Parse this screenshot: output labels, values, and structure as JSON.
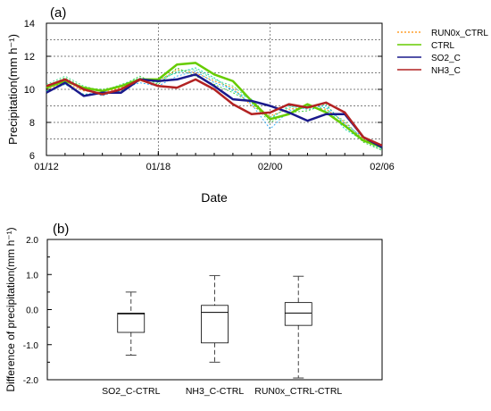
{
  "chart_data": [
    {
      "type": "line",
      "panel_label": "(a)",
      "xlabel": "Date",
      "ylabel": "Precipitation(mm h⁻¹)",
      "ylim": [
        6,
        14
      ],
      "y_ticks": [
        "6",
        "8",
        "10",
        "12",
        "14"
      ],
      "x_ticks": [
        {
          "label": "01/12",
          "x": 0
        },
        {
          "label": "01/18",
          "x": 6
        },
        {
          "label": "02/00",
          "x": 12
        },
        {
          "label": "02/06",
          "x": 18
        }
      ],
      "grid": "dashed",
      "legend_position": "right",
      "series": [
        {
          "name": "RUN0x_CTRL",
          "color": "#ff8c00",
          "style": "dotted",
          "width": 1
        },
        {
          "name": "CTRL",
          "color": "#66cc00",
          "style": "solid",
          "width": 2.5,
          "x": [
            0,
            1,
            2,
            3,
            4,
            5,
            6,
            7,
            8,
            9,
            10,
            11,
            12,
            13,
            14,
            15,
            16,
            17,
            18
          ],
          "y": [
            10.1,
            10.5,
            10.1,
            9.9,
            10.2,
            10.6,
            10.6,
            11.5,
            11.6,
            10.9,
            10.5,
            9.3,
            8.2,
            8.5,
            9.1,
            8.6,
            7.8,
            6.9,
            6.5
          ]
        },
        {
          "name": "SO2_C",
          "color": "#1a1a8c",
          "style": "solid",
          "width": 2.5,
          "x": [
            0,
            1,
            2,
            3,
            4,
            5,
            6,
            7,
            8,
            9,
            10,
            11,
            12,
            13,
            14,
            15,
            16,
            17,
            18
          ],
          "y": [
            9.8,
            10.4,
            9.6,
            9.8,
            9.8,
            10.6,
            10.5,
            10.6,
            10.9,
            10.2,
            9.4,
            9.3,
            9.0,
            8.6,
            8.1,
            8.5,
            8.5,
            7.1,
            6.5
          ]
        },
        {
          "name": "NH3_C",
          "color": "#b22222",
          "style": "solid",
          "width": 2.5,
          "x": [
            0,
            1,
            2,
            3,
            4,
            5,
            6,
            7,
            8,
            9,
            10,
            11,
            12,
            13,
            14,
            15,
            16,
            17,
            18
          ],
          "y": [
            10.2,
            10.6,
            10.0,
            9.7,
            10.0,
            10.6,
            10.2,
            10.1,
            10.6,
            10.0,
            9.1,
            8.5,
            8.6,
            9.1,
            8.9,
            9.2,
            8.6,
            7.1,
            6.6
          ]
        }
      ],
      "ensemble_members": [
        {
          "color": "#ff8c00",
          "y": [
            10.0,
            10.4,
            9.9,
            9.8,
            10.1,
            10.5,
            10.5,
            11.2,
            11.0,
            10.5,
            10.1,
            9.0,
            8.4,
            8.8,
            8.9,
            8.8,
            8.0,
            7.0,
            6.4
          ]
        },
        {
          "color": "#33cc33",
          "y": [
            10.2,
            10.7,
            10.1,
            10.0,
            10.2,
            10.8,
            10.3,
            11.3,
            10.8,
            10.3,
            9.8,
            9.2,
            8.0,
            8.6,
            8.7,
            9.1,
            7.8,
            6.8,
            6.3
          ]
        },
        {
          "color": "#00ccaa",
          "y": [
            9.9,
            10.3,
            9.7,
            9.8,
            9.9,
            10.6,
            10.6,
            11.0,
            11.3,
            10.7,
            9.9,
            9.4,
            8.2,
            9.0,
            8.8,
            8.9,
            7.6,
            6.9,
            6.4
          ]
        },
        {
          "color": "#22aaff",
          "y": [
            10.1,
            10.5,
            10.0,
            9.6,
            10.0,
            10.4,
            10.2,
            10.8,
            11.1,
            10.4,
            10.0,
            9.1,
            7.6,
            8.7,
            8.9,
            9.0,
            7.9,
            7.1,
            6.5
          ]
        },
        {
          "color": "#44dd88",
          "y": [
            10.3,
            10.8,
            10.2,
            9.9,
            10.3,
            10.7,
            10.4,
            11.1,
            11.2,
            10.6,
            10.2,
            9.3,
            8.3,
            8.9,
            9.0,
            8.7,
            8.1,
            6.9,
            6.3
          ]
        }
      ]
    },
    {
      "type": "box",
      "panel_label": "(b)",
      "xlabel": "",
      "ylabel": "Difference of precipitation(mm h⁻¹)",
      "ylim": [
        -2.0,
        2.0
      ],
      "y_ticks": [
        "-2.0",
        "-1.0",
        "0.0",
        "1.0",
        "2.0"
      ],
      "categories": [
        "SO2_C-CTRL",
        "NH3_C-CTRL",
        "RUN0x_CTRL-CTRL"
      ],
      "boxes": [
        {
          "min": -1.3,
          "q1": -0.65,
          "median": -0.12,
          "q3": -0.1,
          "max": 0.5
        },
        {
          "min": -1.5,
          "q1": -0.95,
          "median": -0.08,
          "q3": 0.12,
          "max": 0.97
        },
        {
          "min": -1.95,
          "q1": -0.45,
          "median": -0.1,
          "q3": 0.2,
          "max": 0.95
        }
      ]
    }
  ]
}
